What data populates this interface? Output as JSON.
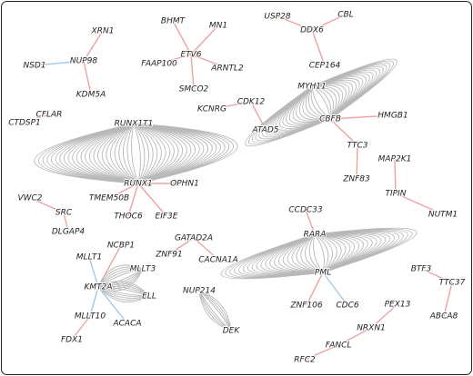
{
  "nodes": [
    {
      "label": "XRN1"
    },
    {
      "label": "NUP98"
    },
    {
      "label": "NSD1"
    },
    {
      "label": "KDM5A"
    },
    {
      "label": "CFLAR"
    },
    {
      "label": "CTDSP1"
    },
    {
      "label": "BHMT"
    },
    {
      "label": "MN1"
    },
    {
      "label": "ETV6"
    },
    {
      "label": "FAAP100"
    },
    {
      "label": "ARNTL2"
    },
    {
      "label": "SMCO2"
    },
    {
      "label": "USP28"
    },
    {
      "label": "CBL"
    },
    {
      "label": "DDX6"
    },
    {
      "label": "CEP164"
    },
    {
      "label": "MYH11"
    },
    {
      "label": "CBFB"
    },
    {
      "label": "HMGB1"
    },
    {
      "label": "TTC3"
    },
    {
      "label": "ZNF83"
    },
    {
      "label": "CDK12"
    },
    {
      "label": "KCNRG"
    },
    {
      "label": "ATAD5"
    },
    {
      "label": "RUNX1T1"
    },
    {
      "label": "RUNX1"
    },
    {
      "label": "OPHN1"
    },
    {
      "label": "TMEM50B"
    },
    {
      "label": "THOC6"
    },
    {
      "label": "EIF3E"
    },
    {
      "label": "MAP2K1"
    },
    {
      "label": "TIPIN"
    },
    {
      "label": "NUTM1"
    },
    {
      "label": "VWC2"
    },
    {
      "label": "SRC"
    },
    {
      "label": "DLGAP4"
    },
    {
      "label": "CCDC33"
    },
    {
      "label": "RARA"
    },
    {
      "label": "PML"
    },
    {
      "label": "ZNF106"
    },
    {
      "label": "CDC6"
    },
    {
      "label": "GATAD2A"
    },
    {
      "label": "ZNF91"
    },
    {
      "label": "CACNA1A"
    },
    {
      "label": "NCBP1"
    },
    {
      "label": "MLLT1"
    },
    {
      "label": "MLLT3"
    },
    {
      "label": "KMT2A"
    },
    {
      "label": "ELL"
    },
    {
      "label": "MLLT10"
    },
    {
      "label": "ACACA"
    },
    {
      "label": "FDX1"
    },
    {
      "label": "NUP214"
    },
    {
      "label": "DEK"
    },
    {
      "label": "BTF3"
    },
    {
      "label": "TTC37"
    },
    {
      "label": "ABCA8"
    },
    {
      "label": "PEX13"
    },
    {
      "label": "NRXN1"
    },
    {
      "label": "FANCL"
    },
    {
      "label": "RFC2"
    }
  ]
}
